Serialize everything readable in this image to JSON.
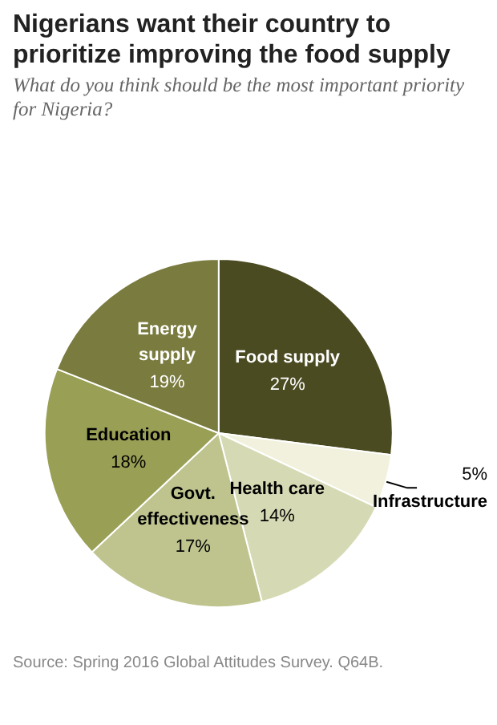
{
  "chart_data": {
    "type": "pie",
    "title": "Nigerians want their country to prioritize improving the food supply",
    "subtitle": "What do you think should be the most important priority for Nigeria?",
    "categories": [
      "Food supply",
      "Infrastructure",
      "Health care",
      "Govt. effectiveness",
      "Education",
      "Energy supply"
    ],
    "values": [
      27,
      5,
      14,
      17,
      18,
      19
    ],
    "value_labels": [
      "27%",
      "5%",
      "14%",
      "17%",
      "18%",
      "19%"
    ],
    "colors": [
      "#4b4b22",
      "#f1f1dd",
      "#d6dab4",
      "#bfc48f",
      "#999f55",
      "#7a7b3e"
    ],
    "annotations": [
      "Source: Spring 2016 Global Attitudes Survey. Q64B."
    ],
    "legend": false
  }
}
